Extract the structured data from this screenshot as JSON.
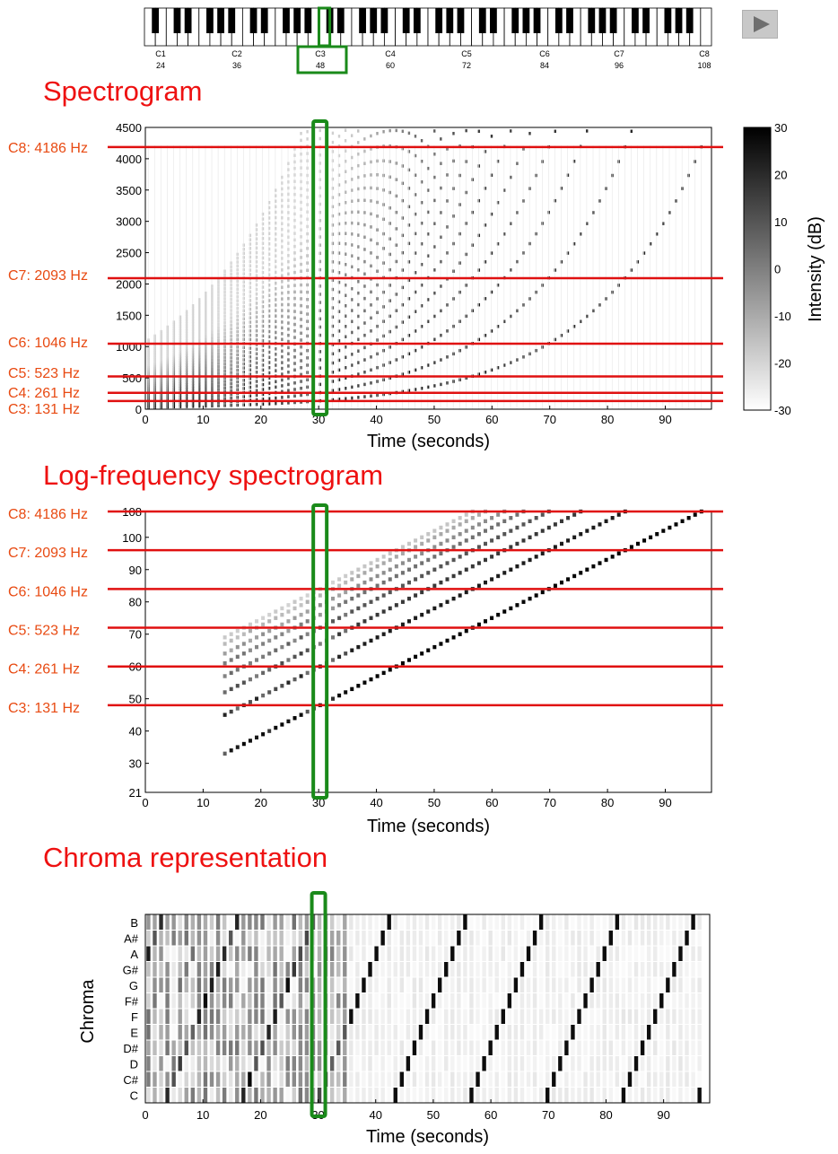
{
  "piano": {
    "octave_labels": [
      {
        "note": "C1",
        "midi": "24"
      },
      {
        "note": "C2",
        "midi": "36"
      },
      {
        "note": "C3",
        "midi": "48"
      },
      {
        "note": "C4",
        "midi": "60"
      },
      {
        "note": "C5",
        "midi": "72"
      },
      {
        "note": "C6",
        "midi": "84"
      },
      {
        "note": "C7",
        "midi": "96"
      },
      {
        "note": "C8",
        "midi": "108"
      }
    ],
    "highlighted_key": "C3",
    "highlight_color": "#1a8a1a",
    "play_button_icon": "play-icon"
  },
  "titles": {
    "spectrogram": "Spectrogram",
    "logfreq": "Log-frequency spectrogram",
    "chroma": "Chroma representation"
  },
  "colors": {
    "title": "#ee1111",
    "reference_line": "#e01010",
    "note_label": "#e84a12",
    "cursor": "#1a8a1a"
  },
  "chart_data": [
    {
      "type": "heatmap",
      "name": "spectrogram",
      "xlabel": "Time (seconds)",
      "ylabel": "",
      "xlim": [
        0,
        98
      ],
      "ylim": [
        0,
        4500
      ],
      "xticks": [
        0,
        10,
        20,
        30,
        40,
        50,
        60,
        70,
        80,
        90
      ],
      "yticks": [
        0,
        500,
        1000,
        1500,
        2000,
        2500,
        3000,
        3500,
        4000,
        4500
      ],
      "colorbar": {
        "label": "Intensity (dB)",
        "range": [
          -30,
          30
        ],
        "ticks": [
          30,
          20,
          10,
          0,
          -10,
          -20,
          -30
        ]
      },
      "reference_lines": [
        {
          "label": "C8: 4186 Hz",
          "value": 4186
        },
        {
          "label": "C7: 2093 Hz",
          "value": 2093
        },
        {
          "label": "C6: 1046 Hz",
          "value": 1046
        },
        {
          "label": "C5: 523 Hz",
          "value": 523
        },
        {
          "label": "C4: 261 Hz",
          "value": 261
        },
        {
          "label": "C3: 131 Hz",
          "value": 131
        }
      ],
      "cursor_time": 30,
      "notes": {
        "midi_start": 21,
        "midi_end": 108,
        "time_start": 0.5,
        "time_step": 1.1
      }
    },
    {
      "type": "heatmap",
      "name": "log-frequency spectrogram",
      "xlabel": "Time (seconds)",
      "ylabel": "",
      "xlim": [
        0,
        98
      ],
      "ylim": [
        21,
        108
      ],
      "xticks": [
        0,
        10,
        20,
        30,
        40,
        50,
        60,
        70,
        80,
        90
      ],
      "yticks": [
        21,
        30,
        40,
        50,
        60,
        70,
        80,
        90,
        100,
        108
      ],
      "reference_lines": [
        {
          "label": "C8: 4186 Hz",
          "value": 108
        },
        {
          "label": "C7: 2093 Hz",
          "value": 96
        },
        {
          "label": "C6: 1046 Hz",
          "value": 84
        },
        {
          "label": "C5: 523 Hz",
          "value": 72
        },
        {
          "label": "C4: 261 Hz",
          "value": 60
        },
        {
          "label": "C3: 131 Hz",
          "value": 48
        }
      ],
      "cursor_time": 30
    },
    {
      "type": "heatmap",
      "name": "chroma",
      "xlabel": "Time (seconds)",
      "ylabel": "Chroma",
      "xlim": [
        0,
        98
      ],
      "xticks": [
        0,
        10,
        20,
        30,
        40,
        50,
        60,
        70,
        80,
        90
      ],
      "categories": [
        "B",
        "A#",
        "A",
        "G#",
        "G",
        "F#",
        "F",
        "E",
        "D#",
        "D",
        "C#",
        "C"
      ],
      "cursor_time": 30
    }
  ]
}
